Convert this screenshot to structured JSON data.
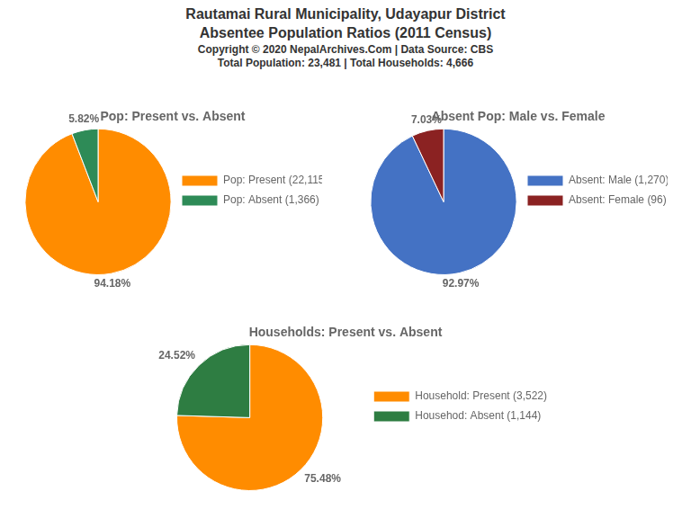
{
  "title": "Rautamai Rural Municipality, Udayapur District",
  "subtitle": "Absentee Population Ratios (2011 Census)",
  "annotations": [
    "Copyright © 2020 NepalArchives.Com | Data Source: CBS",
    "Total Population: 23,481 | Total Households: 4,666"
  ],
  "chart_data": [
    {
      "type": "pie",
      "title": "Pop: Present vs. Absent",
      "categories": [
        "Pop: Present (22,115)",
        "Pop: Absent (1,366)"
      ],
      "values": [
        94.18,
        5.82
      ],
      "value_labels": [
        "94.18%",
        "5.82%"
      ],
      "colors": [
        "#FF8C00",
        "#2E8B57"
      ],
      "data_labels": true,
      "legend": "right"
    },
    {
      "type": "pie",
      "title": "Absent Pop: Male vs. Female",
      "categories": [
        "Absent: Male (1,270)",
        "Absent: Female (96)"
      ],
      "values": [
        92.97,
        7.03
      ],
      "value_labels": [
        "92.97%",
        "7.03%"
      ],
      "colors": [
        "#4472C4",
        "#8B2222"
      ],
      "data_labels": true,
      "legend": "right"
    },
    {
      "type": "pie",
      "title": "Households: Present vs. Absent",
      "categories": [
        "Household: Present (3,522)",
        "Househod: Absent (1,144)"
      ],
      "values": [
        75.48,
        24.52
      ],
      "value_labels": [
        "75.48%",
        "24.52%"
      ],
      "colors": [
        "#FF8C00",
        "#2E7D42"
      ],
      "data_labels": true,
      "legend": "right"
    }
  ]
}
